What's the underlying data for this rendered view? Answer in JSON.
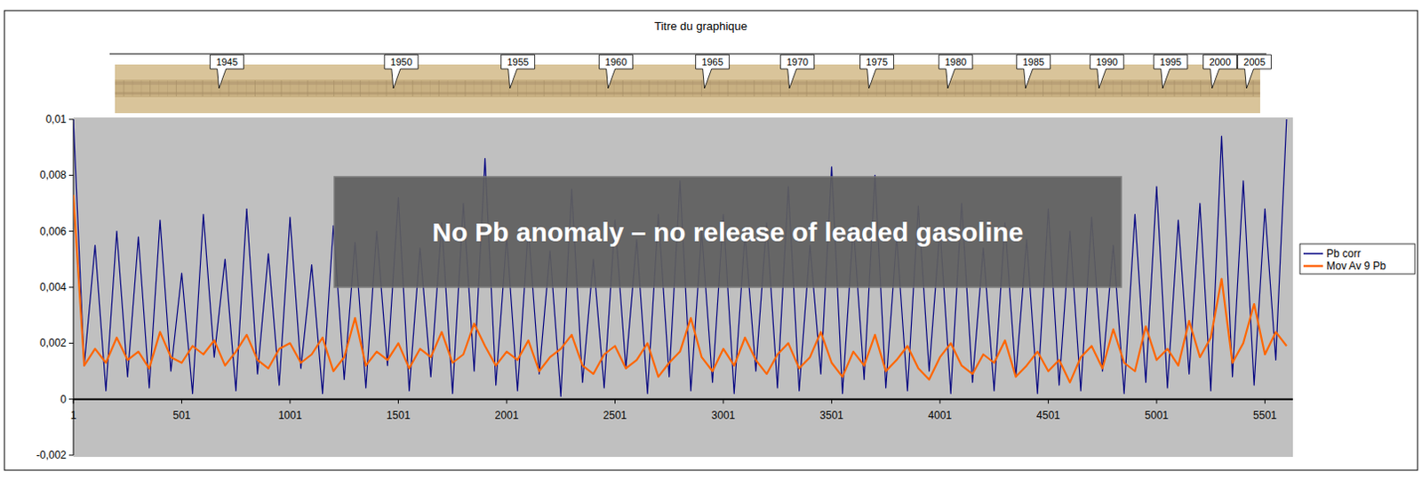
{
  "chart_data": {
    "type": "line",
    "title": "Titre du graphique",
    "x": [
      1,
      51,
      101,
      151,
      201,
      251,
      301,
      351,
      401,
      451,
      501,
      551,
      601,
      651,
      701,
      751,
      801,
      851,
      901,
      951,
      1001,
      1051,
      1101,
      1151,
      1201,
      1251,
      1301,
      1351,
      1401,
      1451,
      1501,
      1551,
      1601,
      1651,
      1701,
      1751,
      1801,
      1851,
      1901,
      1951,
      2001,
      2051,
      2101,
      2151,
      2201,
      2251,
      2301,
      2351,
      2401,
      2451,
      2501,
      2551,
      2601,
      2651,
      2701,
      2751,
      2801,
      2851,
      2901,
      2951,
      3001,
      3051,
      3101,
      3151,
      3201,
      3251,
      3301,
      3351,
      3401,
      3451,
      3501,
      3551,
      3601,
      3651,
      3701,
      3751,
      3801,
      3851,
      3901,
      3951,
      4001,
      4051,
      4101,
      4151,
      4201,
      4251,
      4301,
      4351,
      4401,
      4451,
      4501,
      4551,
      4601,
      4651,
      4701,
      4751,
      4801,
      4851,
      4901,
      4951,
      5001,
      5051,
      5101,
      5151,
      5201,
      5251,
      5301,
      5351,
      5401,
      5451,
      5501,
      5551,
      5601
    ],
    "series": [
      {
        "name": "Pb corr",
        "color": "#000080",
        "values": [
          0.01,
          0.0012,
          0.0055,
          0.0003,
          0.006,
          0.0008,
          0.0058,
          0.0004,
          0.0064,
          0.001,
          0.0045,
          0.0002,
          0.0066,
          0.0015,
          0.005,
          0.0003,
          0.0068,
          0.0009,
          0.0052,
          0.0005,
          0.0065,
          0.0011,
          0.0048,
          0.0002,
          0.0062,
          0.0007,
          0.0056,
          0.0004,
          0.006,
          0.0012,
          0.0072,
          0.0003,
          0.0054,
          0.0008,
          0.0063,
          0.0002,
          0.007,
          0.001,
          0.0086,
          0.0005,
          0.0058,
          0.0003,
          0.0061,
          0.0009,
          0.0053,
          0.0001,
          0.0075,
          0.0006,
          0.005,
          0.0004,
          0.0064,
          0.0011,
          0.0057,
          0.0002,
          0.0066,
          0.0008,
          0.0078,
          0.0003,
          0.006,
          0.0006,
          0.0066,
          0.0002,
          0.0059,
          0.001,
          0.0063,
          0.0004,
          0.0076,
          0.0003,
          0.0055,
          0.0009,
          0.0083,
          0.0002,
          0.0062,
          0.0007,
          0.008,
          0.0004,
          0.0058,
          0.0003,
          0.0069,
          0.001,
          0.0061,
          0.0002,
          0.007,
          0.0006,
          0.0054,
          0.0003,
          0.0063,
          0.0008,
          0.0057,
          0.0002,
          0.0068,
          0.0005,
          0.006,
          0.0003,
          0.0065,
          0.001,
          0.0055,
          0.0002,
          0.0066,
          0.0006,
          0.0076,
          0.0004,
          0.0064,
          0.0009,
          0.007,
          0.0003,
          0.0094,
          0.0008,
          0.0078,
          0.0005,
          0.0068,
          0.0014,
          0.01
        ]
      },
      {
        "name": "Mov Av 9 Pb",
        "color": "#ff6600",
        "values": [
          0.0073,
          0.0012,
          0.0018,
          0.0013,
          0.0022,
          0.0014,
          0.0017,
          0.0011,
          0.0024,
          0.0015,
          0.0013,
          0.0019,
          0.0016,
          0.0021,
          0.0012,
          0.0017,
          0.0023,
          0.0014,
          0.0011,
          0.0018,
          0.002,
          0.0013,
          0.0016,
          0.0022,
          0.001,
          0.0015,
          0.0029,
          0.0012,
          0.0017,
          0.0014,
          0.002,
          0.0011,
          0.0018,
          0.0015,
          0.0024,
          0.0013,
          0.0016,
          0.0027,
          0.0019,
          0.0012,
          0.0017,
          0.0014,
          0.0021,
          0.001,
          0.0015,
          0.0018,
          0.0023,
          0.0012,
          0.0009,
          0.0016,
          0.0019,
          0.0011,
          0.0014,
          0.002,
          0.0008,
          0.0013,
          0.0017,
          0.0029,
          0.0015,
          0.001,
          0.0018,
          0.0012,
          0.0022,
          0.0014,
          0.0009,
          0.0016,
          0.002,
          0.0011,
          0.0015,
          0.0024,
          0.0013,
          0.0008,
          0.0017,
          0.0012,
          0.0023,
          0.001,
          0.0014,
          0.0019,
          0.0011,
          0.0007,
          0.0015,
          0.002,
          0.0012,
          0.0009,
          0.0016,
          0.0013,
          0.0021,
          0.0008,
          0.0012,
          0.0017,
          0.001,
          0.0014,
          0.0006,
          0.0015,
          0.0019,
          0.0011,
          0.0025,
          0.0013,
          0.001,
          0.0026,
          0.0014,
          0.0018,
          0.0012,
          0.0028,
          0.0015,
          0.0022,
          0.0043,
          0.0013,
          0.002,
          0.0034,
          0.0016,
          0.0024,
          0.0019
        ]
      }
    ],
    "xlim": [
      1,
      5630
    ],
    "xticks": [
      1,
      501,
      1001,
      1501,
      2001,
      2501,
      3001,
      3501,
      4001,
      4501,
      5001,
      5501
    ],
    "ylim": [
      -0.002,
      0.01
    ],
    "yticks": [
      {
        "value": -0.002,
        "label": "-0,002"
      },
      0,
      {
        "value": 0.002,
        "label": "0,002"
      },
      {
        "value": 0.004,
        "label": "0,004"
      },
      {
        "value": 0.006,
        "label": "0,006"
      },
      {
        "value": 0.008,
        "label": "0,008"
      },
      {
        "value": 0.01,
        "label": "0,01"
      }
    ],
    "grid": false,
    "legend": "right",
    "annotations": [
      {
        "text": "No Pb anomaly – no release of leaded gasoline"
      },
      {
        "text": "1945",
        "x": 673
      },
      {
        "text": "1950",
        "x": 1478
      },
      {
        "text": "1955",
        "x": 2016
      },
      {
        "text": "1960",
        "x": 2469
      },
      {
        "text": "1965",
        "x": 2914
      },
      {
        "text": "1970",
        "x": 3306
      },
      {
        "text": "1975",
        "x": 3673
      },
      {
        "text": "1980",
        "x": 4037
      },
      {
        "text": "1985",
        "x": 4396
      },
      {
        "text": "1990",
        "x": 4735
      },
      {
        "text": "1995",
        "x": 5029
      },
      {
        "text": "2000",
        "x": 5257
      },
      {
        "text": "2005",
        "x": 5416
      }
    ]
  }
}
